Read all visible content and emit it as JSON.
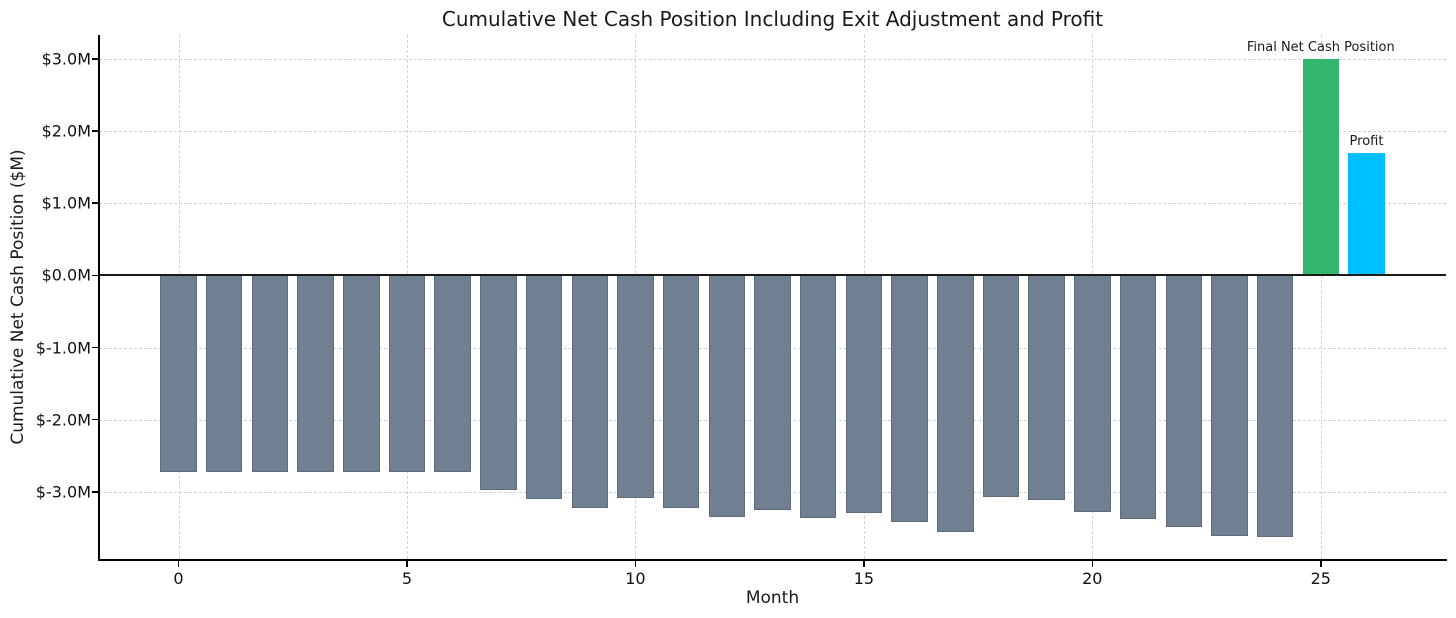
{
  "chart_data": {
    "type": "bar",
    "title": "Cumulative Net Cash Position Including Exit Adjustment and Profit",
    "xlabel": "Month",
    "ylabel": "Cumulative Net Cash Position ($M)",
    "xlim": [
      -1.74,
      27.74
    ],
    "ylim": [
      -3.93,
      3.33
    ],
    "grid": true,
    "bar_width": 0.8,
    "x_ticks": [
      {
        "value": 0,
        "label": "0"
      },
      {
        "value": 5,
        "label": "5"
      },
      {
        "value": 10,
        "label": "10"
      },
      {
        "value": 15,
        "label": "15"
      },
      {
        "value": 20,
        "label": "20"
      },
      {
        "value": 25,
        "label": "25"
      }
    ],
    "y_ticks": [
      {
        "value": 3.0,
        "label": "$3.0M"
      },
      {
        "value": 2.0,
        "label": "$2.0M"
      },
      {
        "value": 1.0,
        "label": "$1.0M"
      },
      {
        "value": 0.0,
        "label": "$0.0M"
      },
      {
        "value": -1.0,
        "label": "$-1.0M"
      },
      {
        "value": -2.0,
        "label": "$-2.0M"
      },
      {
        "value": -3.0,
        "label": "$-3.0M"
      }
    ],
    "series": [
      {
        "name": "monthly-cumulative-net-cash",
        "color": "#708090",
        "edge_color": "rgba(72,86,100,0.45)",
        "x": [
          0,
          1,
          2,
          3,
          4,
          5,
          6,
          7,
          8,
          9,
          10,
          11,
          12,
          13,
          14,
          15,
          16,
          17,
          18,
          19,
          20,
          21,
          22,
          23,
          24
        ],
        "values": [
          -2.72,
          -2.72,
          -2.72,
          -2.72,
          -2.72,
          -2.72,
          -2.72,
          -2.97,
          -3.1,
          -3.22,
          -3.08,
          -3.22,
          -3.35,
          -3.25,
          -3.37,
          -3.3,
          -3.42,
          -3.56,
          -3.07,
          -3.12,
          -3.28,
          -3.38,
          -3.49,
          -3.61,
          -3.62
        ]
      },
      {
        "name": "final-net-cash-position",
        "color": "#32B56C",
        "edge_color": "none",
        "x": [
          25
        ],
        "values": [
          3.0
        ]
      },
      {
        "name": "profit",
        "color": "#00BFFF",
        "edge_color": "none",
        "x": [
          26
        ],
        "values": [
          1.7
        ]
      }
    ],
    "annotations": [
      {
        "text": "Final Net Cash Position",
        "x": 25,
        "y": 3.0
      },
      {
        "text": "Profit",
        "x": 26,
        "y": 1.7
      }
    ]
  },
  "colors": {
    "background": "#ffffff",
    "grid": "#d2d2d2",
    "axis": "#000000",
    "zero_line": "#1a1a1a",
    "bar_gray": "#708090",
    "bar_green": "#32B56C",
    "bar_cyan": "#00BFFF"
  }
}
